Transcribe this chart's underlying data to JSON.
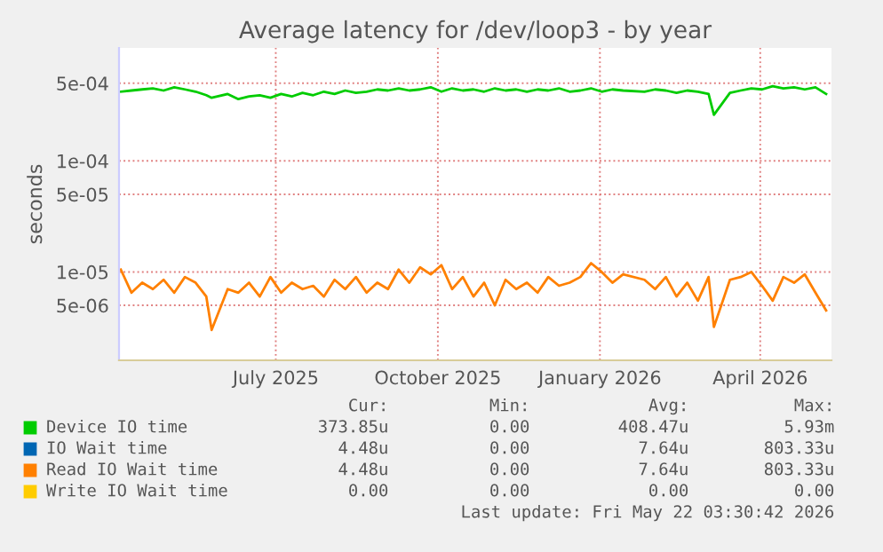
{
  "chart_data": {
    "type": "line",
    "title": "Average latency for /dev/loop3 - by year",
    "ylabel": "seconds",
    "x": [
      "2025-04-18",
      "2025-04-24",
      "2025-04-30",
      "2025-05-06",
      "2025-05-12",
      "2025-05-18",
      "2025-05-24",
      "2025-05-30",
      "2025-06-05",
      "2025-06-08",
      "2025-06-17",
      "2025-06-23",
      "2025-06-29",
      "2025-07-05",
      "2025-07-11",
      "2025-07-17",
      "2025-07-23",
      "2025-07-29",
      "2025-08-04",
      "2025-08-10",
      "2025-08-16",
      "2025-08-22",
      "2025-08-28",
      "2025-09-03",
      "2025-09-09",
      "2025-09-15",
      "2025-09-21",
      "2025-09-27",
      "2025-10-03",
      "2025-10-09",
      "2025-10-15",
      "2025-10-21",
      "2025-10-27",
      "2025-11-02",
      "2025-11-08",
      "2025-11-14",
      "2025-11-20",
      "2025-11-26",
      "2025-12-02",
      "2025-12-08",
      "2025-12-14",
      "2025-12-20",
      "2025-12-26",
      "2026-01-01",
      "2026-01-07",
      "2026-01-13",
      "2026-01-19",
      "2026-01-25",
      "2026-02-06",
      "2026-02-12",
      "2026-02-18",
      "2026-02-24",
      "2026-03-02",
      "2026-03-08",
      "2026-03-14",
      "2026-03-17",
      "2026-03-26",
      "2026-04-01",
      "2026-04-07",
      "2026-04-13",
      "2026-04-19",
      "2026-04-25",
      "2026-05-01",
      "2026-05-07",
      "2026-05-13",
      "2026-05-19"
    ],
    "series": [
      {
        "name": "Device IO time",
        "color": "#00cc00",
        "values": [
          0.00042,
          0.00043,
          0.00044,
          0.00045,
          0.00043,
          0.00046,
          0.00044,
          0.00042,
          0.00039,
          0.00037,
          0.0004,
          0.00036,
          0.00038,
          0.00039,
          0.00037,
          0.0004,
          0.00038,
          0.00041,
          0.00039,
          0.00042,
          0.0004,
          0.00043,
          0.00041,
          0.00042,
          0.00044,
          0.00043,
          0.00045,
          0.00043,
          0.00044,
          0.00046,
          0.00042,
          0.00045,
          0.00043,
          0.00044,
          0.00042,
          0.00045,
          0.00043,
          0.00044,
          0.00042,
          0.00044,
          0.00043,
          0.00045,
          0.00042,
          0.00043,
          0.00045,
          0.00042,
          0.00044,
          0.00043,
          0.00042,
          0.00044,
          0.00043,
          0.00041,
          0.00043,
          0.00042,
          0.0004,
          0.00026,
          0.00041,
          0.00043,
          0.00045,
          0.00044,
          0.00047,
          0.00045,
          0.00046,
          0.00044,
          0.00046,
          0.0004
        ]
      },
      {
        "name": "IO Wait time",
        "color": "#0066b3",
        "values": [
          null,
          null,
          null,
          null,
          null,
          null,
          null,
          null,
          null,
          null,
          null,
          null,
          null,
          null,
          null,
          null,
          null,
          null,
          null,
          null,
          null,
          null,
          null,
          null,
          null,
          null,
          null,
          null,
          null,
          null,
          null,
          null,
          null,
          null,
          null,
          null,
          null,
          null,
          null,
          null,
          null,
          null,
          null,
          null,
          null,
          null,
          null,
          null,
          null,
          null,
          null,
          null,
          null,
          null,
          null,
          null,
          null,
          null,
          null,
          null,
          null,
          null,
          null,
          null,
          null,
          null
        ]
      },
      {
        "name": "Read IO Wait time",
        "color": "#ff8000",
        "values": [
          1.05e-05,
          6.5e-06,
          8e-06,
          7e-06,
          8.5e-06,
          6.5e-06,
          9e-06,
          8e-06,
          6e-06,
          3e-06,
          7e-06,
          6.5e-06,
          8e-06,
          6e-06,
          9e-06,
          6.5e-06,
          8e-06,
          7e-06,
          7.5e-06,
          6e-06,
          8.5e-06,
          7e-06,
          9e-06,
          6.5e-06,
          8e-06,
          7e-06,
          1.05e-05,
          8e-06,
          1.1e-05,
          9.5e-06,
          1.15e-05,
          7e-06,
          9e-06,
          6e-06,
          8e-06,
          5e-06,
          8.5e-06,
          7e-06,
          8e-06,
          6.5e-06,
          9e-06,
          7.5e-06,
          8e-06,
          9e-06,
          1.2e-05,
          1e-05,
          8e-06,
          9.5e-06,
          8.5e-06,
          7e-06,
          9e-06,
          6e-06,
          8e-06,
          5.5e-06,
          9e-06,
          3.2e-06,
          8.5e-06,
          9e-06,
          1e-05,
          7.5e-06,
          5.5e-06,
          9e-06,
          8e-06,
          9.5e-06,
          6.5e-06,
          4.5e-06
        ]
      },
      {
        "name": "Write IO Wait time",
        "color": "#ffcc00",
        "values": [
          null,
          null,
          null,
          null,
          null,
          null,
          null,
          null,
          null,
          null,
          null,
          null,
          null,
          null,
          null,
          null,
          null,
          null,
          null,
          null,
          null,
          null,
          null,
          null,
          null,
          null,
          null,
          null,
          null,
          null,
          null,
          null,
          null,
          null,
          null,
          null,
          null,
          null,
          null,
          null,
          null,
          null,
          null,
          null,
          null,
          null,
          null,
          null,
          null,
          null,
          null,
          null,
          null,
          null,
          null,
          null,
          null,
          null,
          null,
          null,
          null,
          null,
          null,
          null,
          null,
          null
        ]
      }
    ],
    "log": "y",
    "xlim": [
      "2025-04-17",
      "2026-05-22"
    ],
    "ylim": [
      1.6e-06,
      0.00104
    ],
    "xticks": [
      {
        "value": "2025-07-14",
        "label": "July 2025"
      },
      {
        "value": "2025-10-13",
        "label": "October 2025"
      },
      {
        "value": "2026-01-12",
        "label": "January 2026"
      },
      {
        "value": "2026-04-12",
        "label": "April 2026"
      }
    ],
    "yticks": [
      {
        "value": 5e-06,
        "label": "5e-06"
      },
      {
        "value": 1e-05,
        "label": "1e-05"
      },
      {
        "value": 5e-05,
        "label": "5e-05"
      },
      {
        "value": 0.0001,
        "label": "1e-04"
      },
      {
        "value": 0.0005,
        "label": "5e-04"
      }
    ],
    "grid": true,
    "legend": "bottom",
    "annotations": [
      "Cur:",
      "Min:",
      "Avg:",
      "Max:",
      "373.85u",
      "0.00",
      "408.47u",
      "5.93m",
      "4.48u",
      "0.00",
      "7.64u",
      "803.33u",
      "4.48u",
      "0.00",
      "7.64u",
      "803.33u",
      "0.00",
      "0.00",
      "0.00",
      "0.00",
      "Last update: Fri May 22 03:30:42 2026"
    ]
  }
}
